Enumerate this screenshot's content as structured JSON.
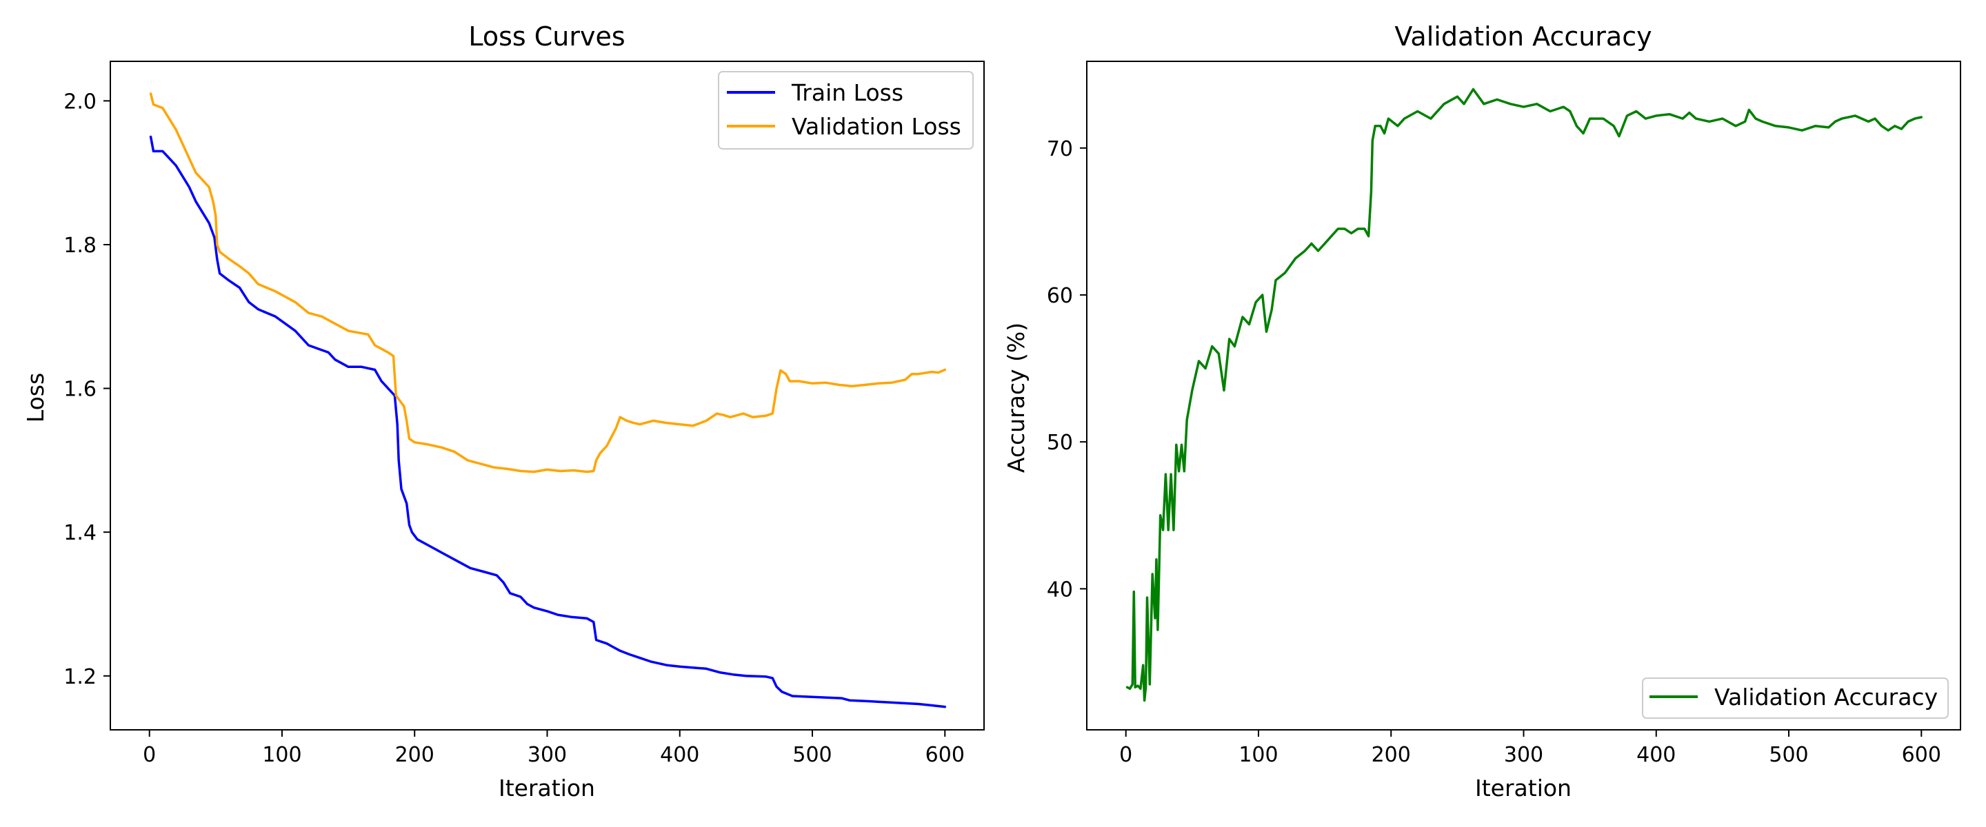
{
  "chart_data": [
    {
      "type": "line",
      "title": "Loss Curves",
      "xlabel": "Iteration",
      "ylabel": "Loss",
      "xlim": [
        -29.5,
        629.5
      ],
      "ylim": [
        1.125,
        2.055
      ],
      "xticks": [
        0,
        100,
        200,
        300,
        400,
        500,
        600
      ],
      "yticks": [
        1.2,
        1.4,
        1.6,
        1.8,
        2.0
      ],
      "ytick_labels": [
        "1.2",
        "1.4",
        "1.6",
        "1.8",
        "2.0"
      ],
      "grid": false,
      "legend_position": "top-right",
      "series": [
        {
          "name": "Train Loss",
          "color": "#0000ff",
          "points": [
            [
              1,
              1.95
            ],
            [
              3,
              1.93
            ],
            [
              10,
              1.93
            ],
            [
              20,
              1.91
            ],
            [
              30,
              1.88
            ],
            [
              35,
              1.86
            ],
            [
              45,
              1.83
            ],
            [
              49,
              1.81
            ],
            [
              51,
              1.78
            ],
            [
              53,
              1.76
            ],
            [
              60,
              1.75
            ],
            [
              68,
              1.74
            ],
            [
              75,
              1.72
            ],
            [
              82,
              1.71
            ],
            [
              95,
              1.7
            ],
            [
              110,
              1.68
            ],
            [
              120,
              1.66
            ],
            [
              135,
              1.65
            ],
            [
              140,
              1.64
            ],
            [
              150,
              1.63
            ],
            [
              160,
              1.63
            ],
            [
              170,
              1.626
            ],
            [
              175,
              1.61
            ],
            [
              180,
              1.6
            ],
            [
              185,
              1.59
            ],
            [
              187,
              1.55
            ],
            [
              188,
              1.5
            ],
            [
              190,
              1.46
            ],
            [
              194,
              1.44
            ],
            [
              196,
              1.41
            ],
            [
              198,
              1.4
            ],
            [
              202,
              1.39
            ],
            [
              212,
              1.38
            ],
            [
              222,
              1.37
            ],
            [
              232,
              1.36
            ],
            [
              242,
              1.35
            ],
            [
              252,
              1.345
            ],
            [
              262,
              1.34
            ],
            [
              267,
              1.33
            ],
            [
              272,
              1.315
            ],
            [
              280,
              1.31
            ],
            [
              285,
              1.3
            ],
            [
              290,
              1.295
            ],
            [
              300,
              1.29
            ],
            [
              308,
              1.285
            ],
            [
              318,
              1.282
            ],
            [
              330,
              1.28
            ],
            [
              335,
              1.275
            ],
            [
              337,
              1.25
            ],
            [
              345,
              1.245
            ],
            [
              350,
              1.24
            ],
            [
              355,
              1.235
            ],
            [
              362,
              1.23
            ],
            [
              370,
              1.225
            ],
            [
              378,
              1.22
            ],
            [
              390,
              1.215
            ],
            [
              400,
              1.213
            ],
            [
              420,
              1.21
            ],
            [
              430,
              1.205
            ],
            [
              440,
              1.202
            ],
            [
              450,
              1.2
            ],
            [
              465,
              1.199
            ],
            [
              470,
              1.197
            ],
            [
              473,
              1.185
            ],
            [
              477,
              1.178
            ],
            [
              485,
              1.172
            ],
            [
              510,
              1.17
            ],
            [
              522,
              1.169
            ],
            [
              528,
              1.166
            ],
            [
              540,
              1.165
            ],
            [
              560,
              1.163
            ],
            [
              580,
              1.161
            ],
            [
              590,
              1.159
            ],
            [
              600,
              1.157
            ]
          ]
        },
        {
          "name": "Validation Loss",
          "color": "#ffa500",
          "points": [
            [
              1,
              2.01
            ],
            [
              3,
              1.995
            ],
            [
              10,
              1.99
            ],
            [
              20,
              1.96
            ],
            [
              25,
              1.94
            ],
            [
              30,
              1.92
            ],
            [
              35,
              1.9
            ],
            [
              40,
              1.89
            ],
            [
              45,
              1.88
            ],
            [
              48,
              1.86
            ],
            [
              50,
              1.84
            ],
            [
              51,
              1.8
            ],
            [
              53,
              1.79
            ],
            [
              60,
              1.78
            ],
            [
              68,
              1.77
            ],
            [
              75,
              1.76
            ],
            [
              82,
              1.745
            ],
            [
              95,
              1.735
            ],
            [
              110,
              1.72
            ],
            [
              120,
              1.705
            ],
            [
              130,
              1.7
            ],
            [
              140,
              1.69
            ],
            [
              150,
              1.68
            ],
            [
              165,
              1.675
            ],
            [
              170,
              1.66
            ],
            [
              175,
              1.655
            ],
            [
              180,
              1.65
            ],
            [
              184,
              1.645
            ],
            [
              186,
              1.59
            ],
            [
              188,
              1.585
            ],
            [
              190,
              1.58
            ],
            [
              192,
              1.575
            ],
            [
              194,
              1.555
            ],
            [
              196,
              1.53
            ],
            [
              200,
              1.525
            ],
            [
              210,
              1.522
            ],
            [
              220,
              1.518
            ],
            [
              230,
              1.512
            ],
            [
              240,
              1.5
            ],
            [
              250,
              1.495
            ],
            [
              260,
              1.49
            ],
            [
              270,
              1.488
            ],
            [
              280,
              1.485
            ],
            [
              290,
              1.484
            ],
            [
              300,
              1.487
            ],
            [
              310,
              1.485
            ],
            [
              320,
              1.486
            ],
            [
              330,
              1.484
            ],
            [
              335,
              1.485
            ],
            [
              337,
              1.5
            ],
            [
              340,
              1.51
            ],
            [
              345,
              1.52
            ],
            [
              352,
              1.545
            ],
            [
              355,
              1.56
            ],
            [
              360,
              1.555
            ],
            [
              365,
              1.552
            ],
            [
              370,
              1.55
            ],
            [
              380,
              1.555
            ],
            [
              390,
              1.552
            ],
            [
              400,
              1.55
            ],
            [
              410,
              1.548
            ],
            [
              420,
              1.555
            ],
            [
              428,
              1.565
            ],
            [
              433,
              1.563
            ],
            [
              438,
              1.56
            ],
            [
              448,
              1.565
            ],
            [
              455,
              1.56
            ],
            [
              465,
              1.562
            ],
            [
              470,
              1.565
            ],
            [
              473,
              1.6
            ],
            [
              476,
              1.625
            ],
            [
              480,
              1.62
            ],
            [
              483,
              1.61
            ],
            [
              490,
              1.61
            ],
            [
              500,
              1.607
            ],
            [
              510,
              1.608
            ],
            [
              520,
              1.605
            ],
            [
              530,
              1.603
            ],
            [
              540,
              1.605
            ],
            [
              550,
              1.607
            ],
            [
              560,
              1.608
            ],
            [
              570,
              1.612
            ],
            [
              575,
              1.62
            ],
            [
              580,
              1.62
            ],
            [
              590,
              1.623
            ],
            [
              595,
              1.622
            ],
            [
              600,
              1.626
            ]
          ]
        }
      ]
    },
    {
      "type": "line",
      "title": "Validation Accuracy",
      "xlabel": "Iteration",
      "ylabel": "Accuracy (%)",
      "xlim": [
        -29.5,
        629.5
      ],
      "ylim": [
        30.4,
        75.9
      ],
      "xticks": [
        0,
        100,
        200,
        300,
        400,
        500,
        600
      ],
      "yticks": [
        40,
        50,
        60,
        70
      ],
      "grid": false,
      "legend_position": "lower-right",
      "series": [
        {
          "name": "Validation Accuracy",
          "color": "#008000",
          "points": [
            [
              1,
              33.3
            ],
            [
              3,
              33.2
            ],
            [
              5,
              33.5
            ],
            [
              6,
              39.8
            ],
            [
              7,
              33.3
            ],
            [
              9,
              33.4
            ],
            [
              11,
              33.2
            ],
            [
              13,
              34.8
            ],
            [
              14,
              32.4
            ],
            [
              15,
              33.3
            ],
            [
              16,
              39.4
            ],
            [
              18,
              33.5
            ],
            [
              20,
              41.0
            ],
            [
              22,
              38.0
            ],
            [
              23,
              42.0
            ],
            [
              24,
              37.2
            ],
            [
              26,
              45.0
            ],
            [
              28,
              44.0
            ],
            [
              30,
              47.8
            ],
            [
              32,
              44.0
            ],
            [
              34,
              47.8
            ],
            [
              36,
              44.0
            ],
            [
              38,
              49.8
            ],
            [
              40,
              48.0
            ],
            [
              42,
              49.8
            ],
            [
              44,
              48.0
            ],
            [
              46,
              51.5
            ],
            [
              50,
              53.5
            ],
            [
              55,
              55.5
            ],
            [
              60,
              55.0
            ],
            [
              65,
              56.5
            ],
            [
              70,
              56.0
            ],
            [
              74,
              53.5
            ],
            [
              78,
              57.0
            ],
            [
              82,
              56.5
            ],
            [
              88,
              58.5
            ],
            [
              93,
              58.0
            ],
            [
              98,
              59.5
            ],
            [
              103,
              60.0
            ],
            [
              106,
              57.5
            ],
            [
              110,
              59.0
            ],
            [
              113,
              61.0
            ],
            [
              120,
              61.5
            ],
            [
              128,
              62.5
            ],
            [
              135,
              63.0
            ],
            [
              140,
              63.5
            ],
            [
              145,
              63.0
            ],
            [
              150,
              63.5
            ],
            [
              155,
              64.0
            ],
            [
              160,
              64.5
            ],
            [
              165,
              64.5
            ],
            [
              170,
              64.2
            ],
            [
              175,
              64.5
            ],
            [
              180,
              64.5
            ],
            [
              183,
              64.0
            ],
            [
              185,
              67.0
            ],
            [
              186,
              70.5
            ],
            [
              188,
              71.5
            ],
            [
              192,
              71.5
            ],
            [
              195,
              71.0
            ],
            [
              198,
              72.0
            ],
            [
              205,
              71.5
            ],
            [
              210,
              72.0
            ],
            [
              220,
              72.5
            ],
            [
              230,
              72.0
            ],
            [
              240,
              73.0
            ],
            [
              250,
              73.5
            ],
            [
              255,
              73.0
            ],
            [
              262,
              74.0
            ],
            [
              270,
              73.0
            ],
            [
              280,
              73.3
            ],
            [
              290,
              73.0
            ],
            [
              300,
              72.8
            ],
            [
              310,
              73.0
            ],
            [
              320,
              72.5
            ],
            [
              330,
              72.8
            ],
            [
              335,
              72.5
            ],
            [
              340,
              71.5
            ],
            [
              345,
              71.0
            ],
            [
              350,
              72.0
            ],
            [
              360,
              72.0
            ],
            [
              368,
              71.5
            ],
            [
              372,
              70.8
            ],
            [
              378,
              72.2
            ],
            [
              385,
              72.5
            ],
            [
              392,
              72.0
            ],
            [
              400,
              72.2
            ],
            [
              410,
              72.3
            ],
            [
              420,
              72.0
            ],
            [
              425,
              72.4
            ],
            [
              430,
              72.0
            ],
            [
              440,
              71.8
            ],
            [
              450,
              72.0
            ],
            [
              460,
              71.5
            ],
            [
              467,
              71.8
            ],
            [
              470,
              72.6
            ],
            [
              475,
              72.0
            ],
            [
              480,
              71.8
            ],
            [
              490,
              71.5
            ],
            [
              500,
              71.4
            ],
            [
              510,
              71.2
            ],
            [
              520,
              71.5
            ],
            [
              530,
              71.4
            ],
            [
              535,
              71.8
            ],
            [
              540,
              72.0
            ],
            [
              550,
              72.2
            ],
            [
              560,
              71.8
            ],
            [
              565,
              72.0
            ],
            [
              570,
              71.5
            ],
            [
              575,
              71.2
            ],
            [
              580,
              71.5
            ],
            [
              585,
              71.3
            ],
            [
              590,
              71.8
            ],
            [
              595,
              72.0
            ],
            [
              600,
              72.1
            ]
          ]
        }
      ]
    }
  ]
}
